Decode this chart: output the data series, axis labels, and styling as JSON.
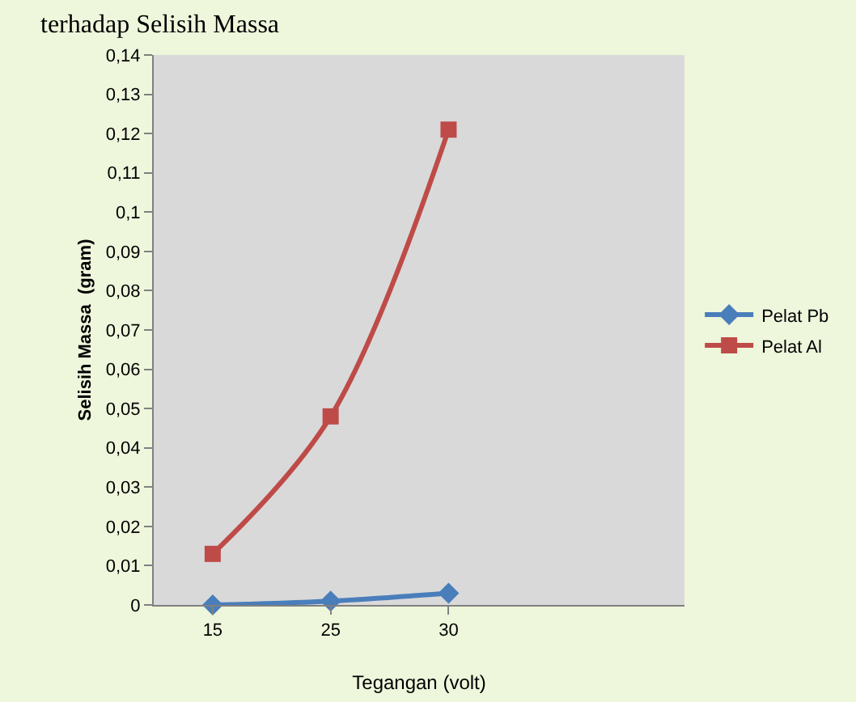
{
  "chart_data": {
    "type": "line",
    "title": "terhadap Selisih Massa",
    "xlabel": "Tegangan (volt)",
    "ylabel": "Selisih Massa  (gram)",
    "categories": [
      "15",
      "25",
      "30"
    ],
    "series": [
      {
        "name": "Pelat Pb",
        "color": "#4a7ebb",
        "values": [
          0,
          0.001,
          0.003
        ],
        "marker": "diamond"
      },
      {
        "name": "Pelat Al",
        "color": "#be4b48",
        "values": [
          0.013,
          0.048,
          0.121
        ],
        "marker": "square"
      }
    ],
    "ylim": [
      0,
      0.14
    ],
    "yticks": [
      0,
      {
        "value": 0.01,
        "label": "0,01"
      },
      {
        "value": 0.02,
        "label": "0,02"
      },
      {
        "value": 0.03,
        "label": "0,03"
      },
      {
        "value": 0.04,
        "label": "0,04"
      },
      {
        "value": 0.05,
        "label": "0,05"
      },
      {
        "value": 0.06,
        "label": "0,06"
      },
      {
        "value": 0.07,
        "label": "0,07"
      },
      {
        "value": 0.08,
        "label": "0,08"
      },
      {
        "value": 0.09,
        "label": "0,09"
      },
      {
        "value": 0.1,
        "label": "0,1"
      },
      {
        "value": 0.11,
        "label": "0,11"
      },
      {
        "value": 0.12,
        "label": "0,12"
      },
      {
        "value": 0.13,
        "label": "0,13"
      },
      {
        "value": 0.14,
        "label": "0,14"
      }
    ],
    "grid": false,
    "legend": "right",
    "line_style": "solid"
  }
}
